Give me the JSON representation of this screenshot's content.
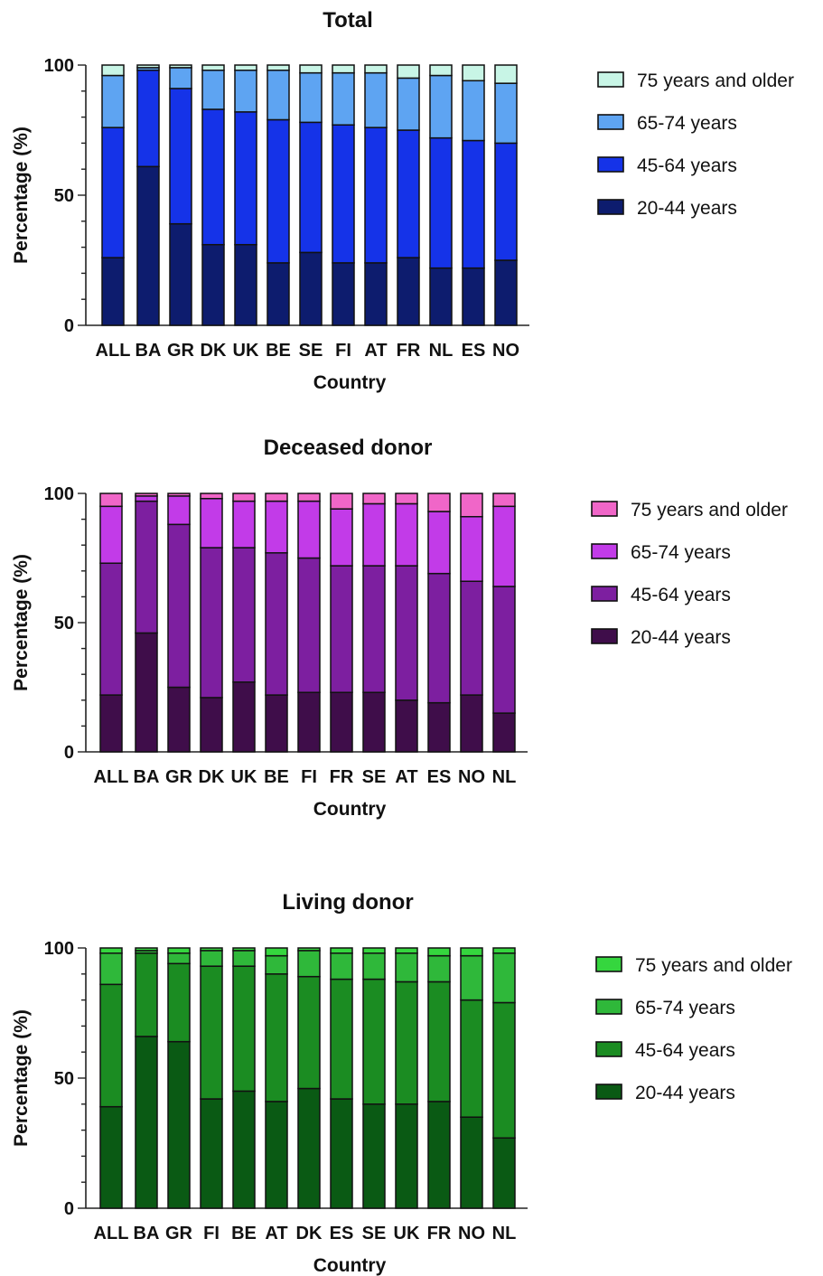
{
  "chart_data": [
    {
      "type": "bar",
      "stacked": true,
      "title": "Total",
      "xlabel": "Country",
      "ylabel": "Percentage (%)",
      "ylim": [
        0,
        100
      ],
      "yticks": [
        0,
        50,
        100
      ],
      "legend_position": "right",
      "categories": [
        "ALL",
        "BA",
        "GR",
        "DK",
        "UK",
        "BE",
        "SE",
        "FI",
        "AT",
        "FR",
        "NL",
        "ES",
        "NO"
      ],
      "series": [
        {
          "name": "20-44 years",
          "color": "#0d1c6e",
          "values": [
            26,
            61,
            39,
            31,
            31,
            24,
            28,
            24,
            24,
            26,
            22,
            22,
            25
          ]
        },
        {
          "name": "45-64 years",
          "color": "#1533e8",
          "values": [
            50,
            37,
            52,
            52,
            51,
            55,
            50,
            53,
            52,
            49,
            50,
            49,
            45
          ]
        },
        {
          "name": "65-74 years",
          "color": "#5ea4f2",
          "values": [
            20,
            1,
            8,
            15,
            16,
            19,
            19,
            20,
            21,
            20,
            24,
            23,
            23
          ]
        },
        {
          "name": "75 years and older",
          "color": "#c8f5e6",
          "values": [
            4,
            1,
            1,
            2,
            2,
            2,
            3,
            3,
            3,
            5,
            4,
            6,
            7
          ]
        }
      ]
    },
    {
      "type": "bar",
      "stacked": true,
      "title": "Deceased donor",
      "xlabel": "Country",
      "ylabel": "Percentage (%)",
      "ylim": [
        0,
        100
      ],
      "yticks": [
        0,
        50,
        100
      ],
      "legend_position": "right",
      "categories": [
        "ALL",
        "BA",
        "GR",
        "DK",
        "UK",
        "BE",
        "FI",
        "FR",
        "SE",
        "AT",
        "ES",
        "NO",
        "NL"
      ],
      "series": [
        {
          "name": "20-44 years",
          "color": "#3f0d4a",
          "values": [
            22,
            46,
            25,
            21,
            27,
            22,
            23,
            23,
            23,
            20,
            19,
            22,
            15
          ]
        },
        {
          "name": "45-64 years",
          "color": "#7d1fa0",
          "values": [
            51,
            51,
            63,
            58,
            52,
            55,
            52,
            49,
            49,
            52,
            50,
            44,
            49
          ]
        },
        {
          "name": "65-74 years",
          "color": "#c23be8",
          "values": [
            22,
            2,
            11,
            19,
            18,
            20,
            22,
            22,
            24,
            24,
            24,
            25,
            31
          ]
        },
        {
          "name": "75 years and older",
          "color": "#f066c8",
          "values": [
            5,
            1,
            1,
            2,
            3,
            3,
            3,
            6,
            4,
            4,
            7,
            9,
            5
          ]
        }
      ]
    },
    {
      "type": "bar",
      "stacked": true,
      "title": "Living donor",
      "xlabel": "Country",
      "ylabel": "Percentage (%)",
      "ylim": [
        0,
        100
      ],
      "yticks": [
        0,
        50,
        100
      ],
      "legend_position": "right",
      "categories": [
        "ALL",
        "BA",
        "GR",
        "FI",
        "BE",
        "AT",
        "DK",
        "ES",
        "SE",
        "UK",
        "FR",
        "NO",
        "NL"
      ],
      "series": [
        {
          "name": "20-44 years",
          "color": "#0a5a14",
          "values": [
            39,
            66,
            64,
            42,
            45,
            41,
            46,
            42,
            40,
            40,
            41,
            35,
            27
          ]
        },
        {
          "name": "45-64 years",
          "color": "#1b8c22",
          "values": [
            47,
            32,
            30,
            51,
            48,
            49,
            43,
            46,
            48,
            47,
            46,
            45,
            52
          ]
        },
        {
          "name": "65-74 years",
          "color": "#2fb83a",
          "values": [
            12,
            1,
            4,
            6,
            6,
            7,
            10,
            10,
            10,
            11,
            10,
            17,
            19
          ]
        },
        {
          "name": "75 years and older",
          "color": "#35d63e",
          "values": [
            2,
            1,
            2,
            1,
            1,
            3,
            1,
            2,
            2,
            2,
            3,
            3,
            2
          ]
        }
      ]
    }
  ]
}
